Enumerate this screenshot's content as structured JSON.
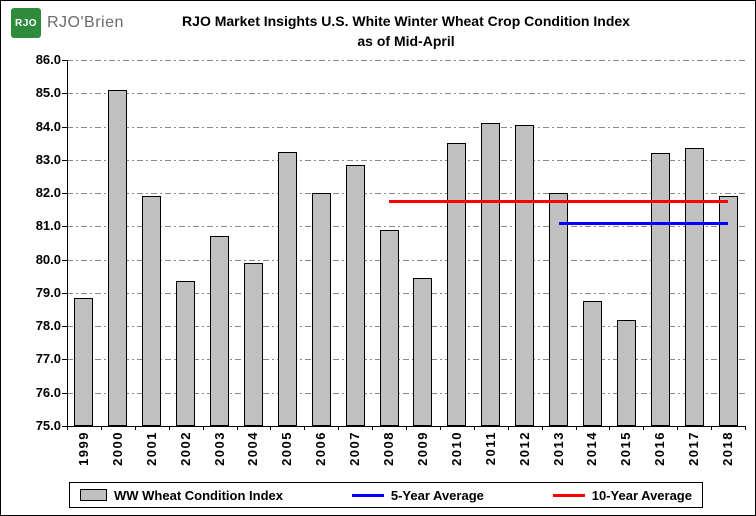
{
  "logo": {
    "mark": "RJO",
    "brand": "RJO'Brien",
    "green": "#2E8B3C"
  },
  "chart_data": {
    "type": "bar",
    "title_line1": "RJO Market Insights U.S. White Winter Wheat Crop Condition Index",
    "title_line2": "as of Mid-April",
    "categories": [
      "1999",
      "2000",
      "2001",
      "2002",
      "2003",
      "2004",
      "2005",
      "2006",
      "2007",
      "2008",
      "2009",
      "2010",
      "2011",
      "2012",
      "2013",
      "2014",
      "2015",
      "2016",
      "2017",
      "2018"
    ],
    "series": [
      {
        "name": "WW Wheat Condition Index",
        "type": "bar",
        "color": "#C0C0C0",
        "values": [
          78.85,
          85.1,
          81.9,
          79.35,
          80.7,
          79.9,
          83.25,
          82.0,
          82.85,
          80.9,
          79.45,
          83.5,
          84.1,
          84.05,
          82.0,
          78.75,
          78.2,
          83.2,
          83.35,
          81.9
        ]
      },
      {
        "name": "5-Year Average",
        "type": "line",
        "color": "#0000FF",
        "value": 81.1,
        "span": [
          "2013",
          "2018"
        ]
      },
      {
        "name": "10-Year Average",
        "type": "line",
        "color": "#FF0000",
        "value": 81.75,
        "span": [
          "2008",
          "2018"
        ]
      }
    ],
    "ylim": [
      75.0,
      86.0
    ],
    "ytick_step": 1.0,
    "yticks": [
      "86.0",
      "85.0",
      "84.0",
      "83.0",
      "82.0",
      "81.0",
      "80.0",
      "79.0",
      "78.0",
      "77.0",
      "76.0",
      "75.0"
    ],
    "grid": "horizontal dash-dot",
    "legend_position": "bottom"
  },
  "legend": {
    "items": [
      {
        "label": "WW Wheat Condition Index",
        "swatch": "bar",
        "color": "#C0C0C0"
      },
      {
        "label": "5-Year Average",
        "swatch": "line",
        "color": "#0000FF"
      },
      {
        "label": "10-Year Average",
        "swatch": "line",
        "color": "#FF0000"
      }
    ]
  }
}
